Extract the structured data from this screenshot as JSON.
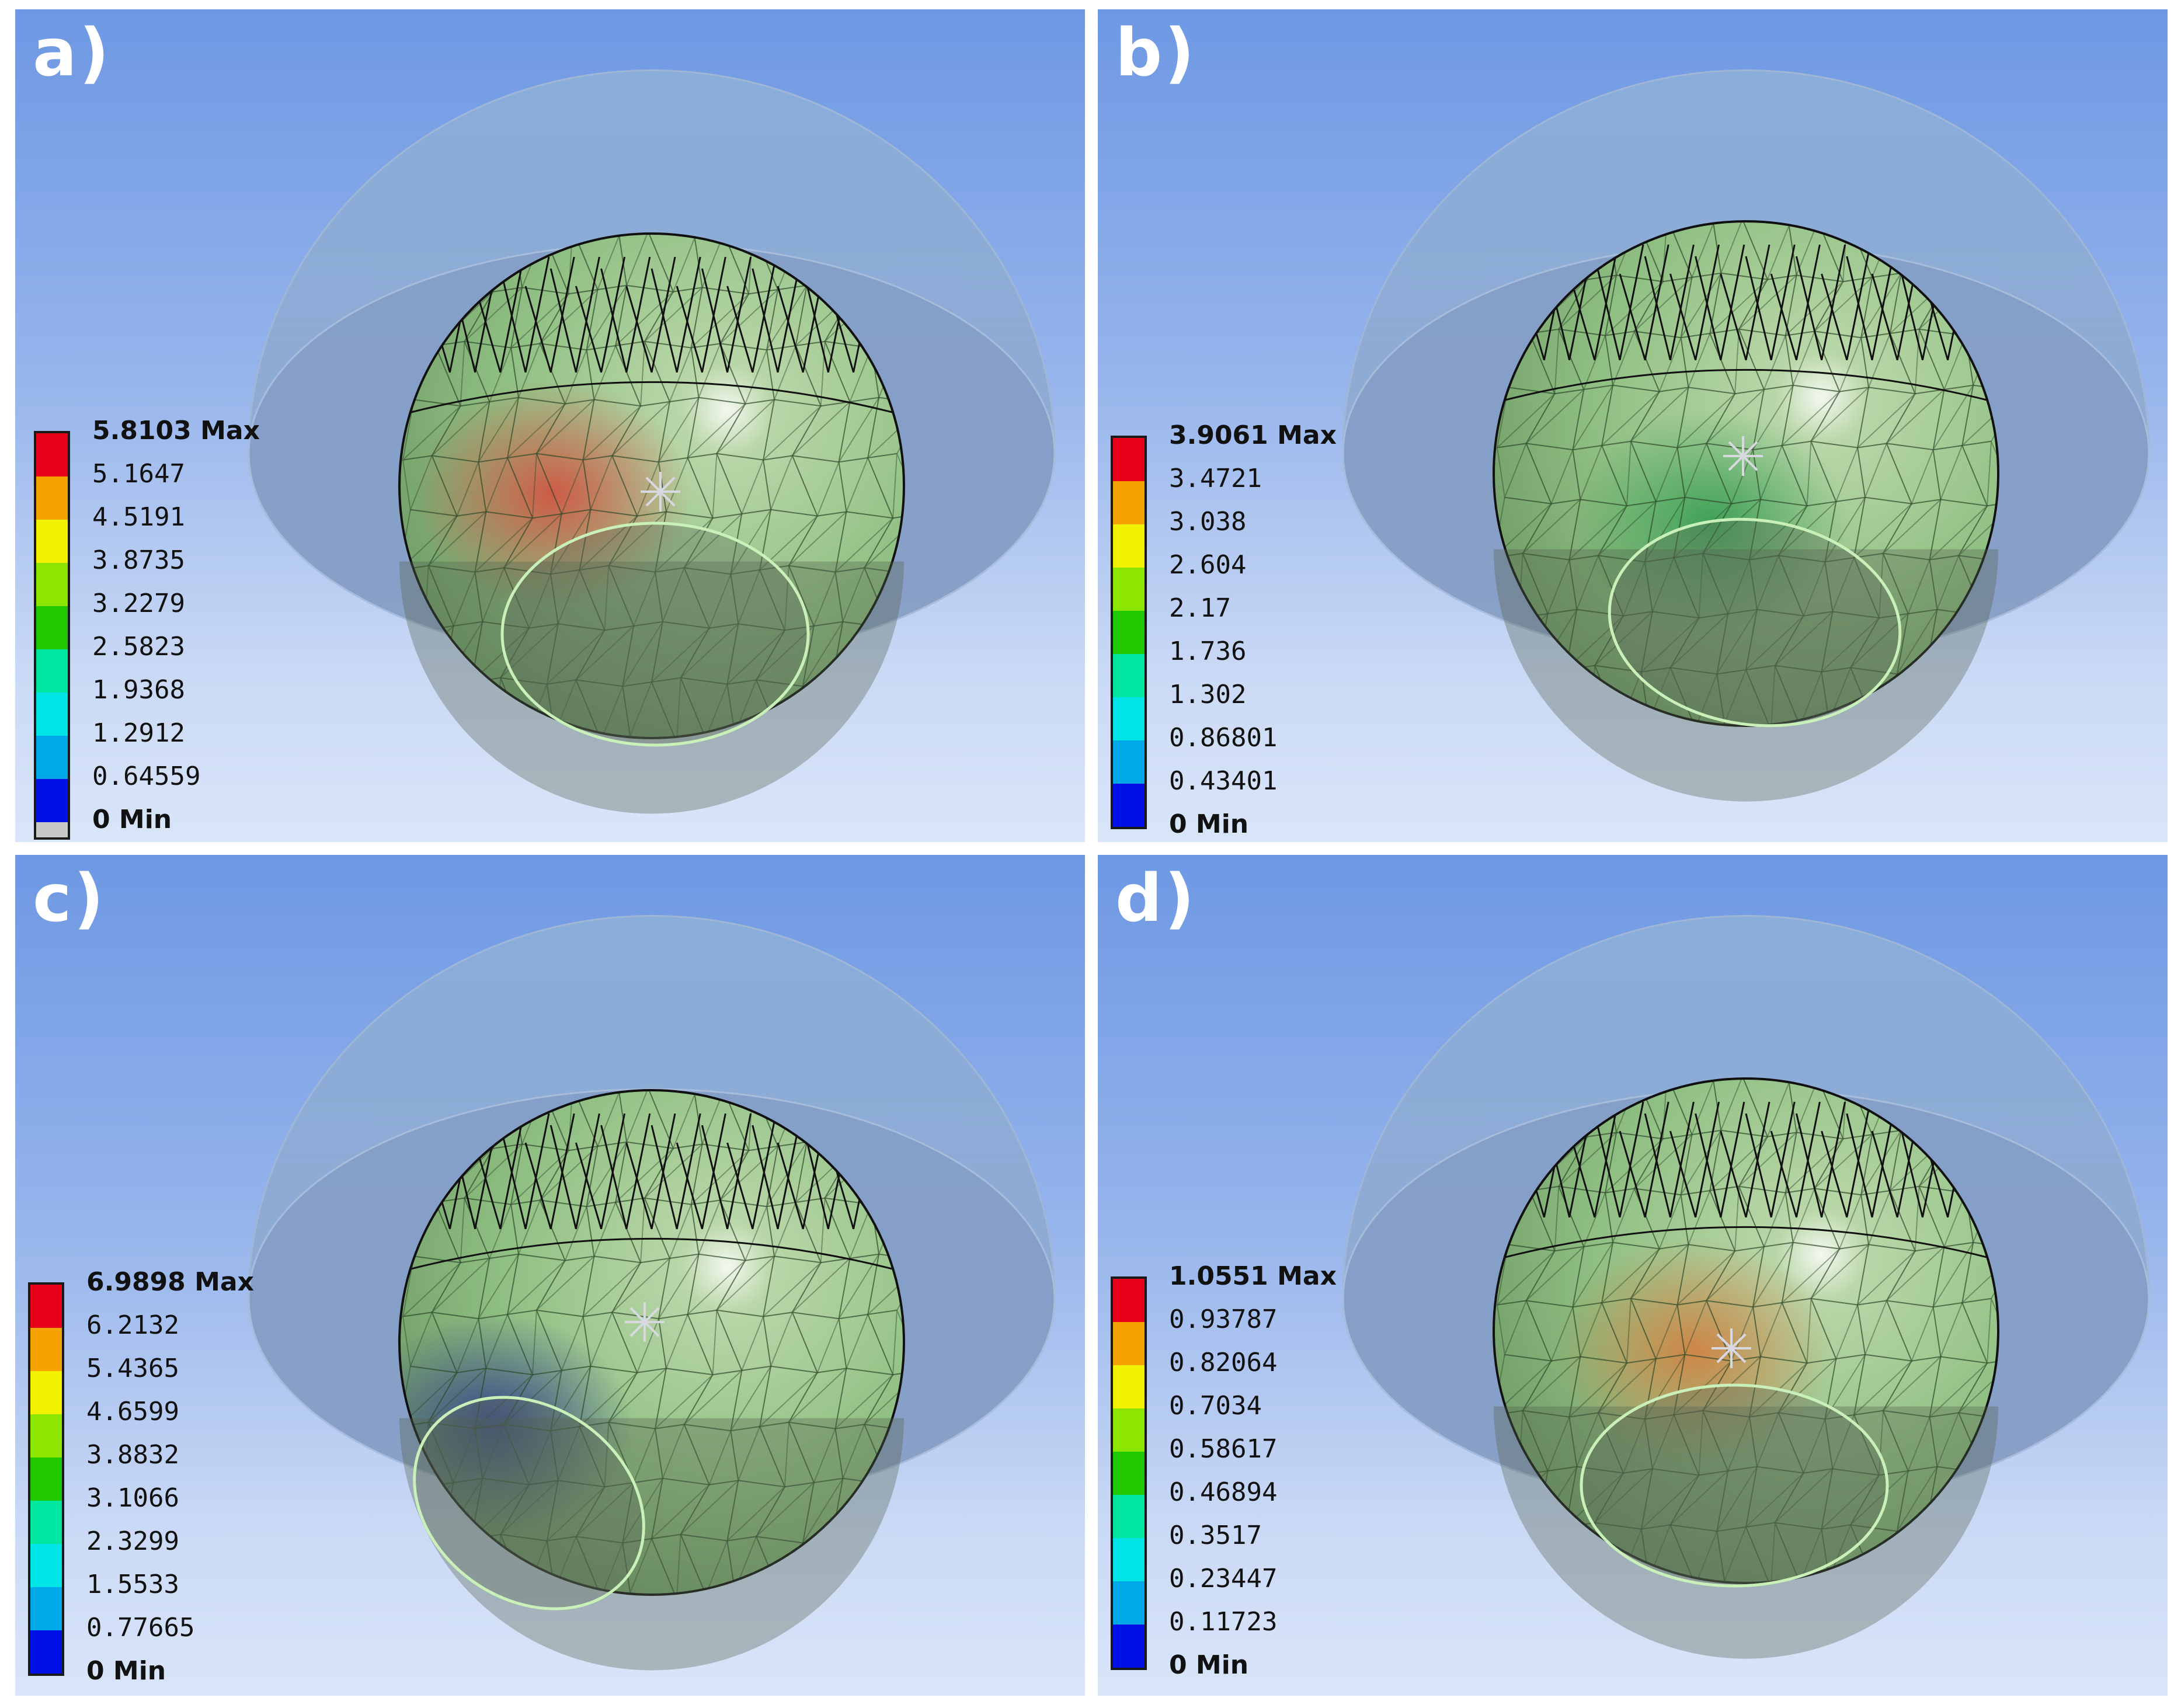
{
  "figure": {
    "panels": [
      {
        "label": "a)",
        "legend": {
          "max_label": "5.8103 Max",
          "min_label": "0 Min",
          "ticks": [
            "5.1647",
            "4.5191",
            "3.8735",
            "3.2279",
            "2.5823",
            "1.9368",
            "1.2912",
            "0.64559"
          ],
          "has_grey_bottom": true
        },
        "contact_hotspot": "red"
      },
      {
        "label": "b)",
        "legend": {
          "max_label": "3.9061 Max",
          "min_label": "0 Min",
          "ticks": [
            "3.4721",
            "3.038",
            "2.604",
            "2.17",
            "1.736",
            "1.302",
            "0.86801",
            "0.43401"
          ],
          "has_grey_bottom": false
        },
        "contact_hotspot": "green"
      },
      {
        "label": "c)",
        "legend": {
          "max_label": "6.9898 Max",
          "min_label": "0 Min",
          "ticks": [
            "6.2132",
            "5.4365",
            "4.6599",
            "3.8832",
            "3.1066",
            "2.3299",
            "1.5533",
            "0.77665"
          ],
          "has_grey_bottom": false
        },
        "contact_hotspot": "blue"
      },
      {
        "label": "d)",
        "legend": {
          "max_label": "1.0551 Max",
          "min_label": "0 Min",
          "ticks": [
            "0.93787",
            "0.82064",
            "0.7034",
            "0.58617",
            "0.46894",
            "0.3517",
            "0.23447",
            "0.11723"
          ],
          "has_grey_bottom": false
        },
        "contact_hotspot": "orange"
      }
    ],
    "legend_colors": [
      "#e8001a",
      "#f5a300",
      "#f2f200",
      "#8ce600",
      "#20c800",
      "#00e6a0",
      "#00e6e6",
      "#00a8e8",
      "#0010e6"
    ],
    "grey_bottom_color": "#c8c8c8"
  }
}
